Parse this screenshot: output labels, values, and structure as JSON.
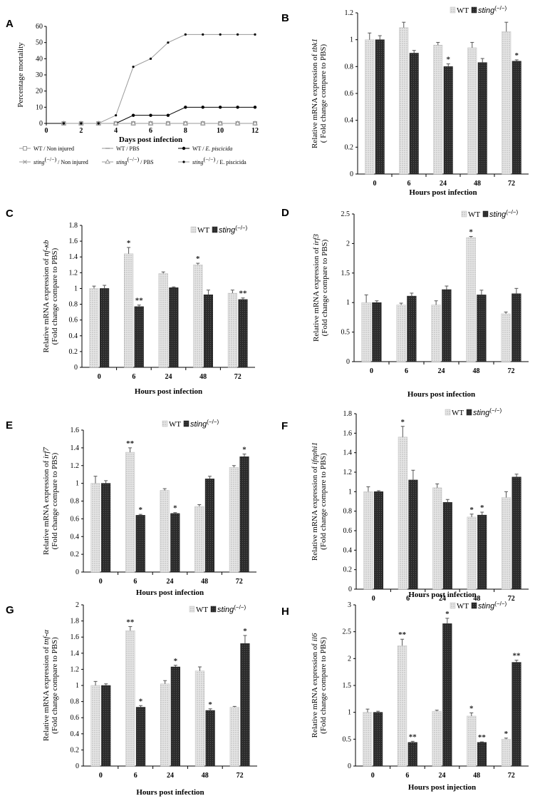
{
  "colors": {
    "wt": "#d9d9d9",
    "sting": "#262626",
    "grid": "#000000",
    "axis": "#000000",
    "mortality_dark": "#000000",
    "mortality_light": "#9a9a9a"
  },
  "charts": [
    {
      "letter": "A",
      "chart_data": {
        "type": "line",
        "ylabel": "Percentage mortality",
        "xlabel": "Days post infection",
        "ylim": [
          0,
          60
        ],
        "yticks": [
          "0",
          "10",
          "20",
          "30",
          "40",
          "50",
          "60"
        ],
        "xlim": [
          0,
          12
        ],
        "xticks": [
          "0",
          "2",
          "4",
          "6",
          "8",
          "10",
          "12"
        ],
        "x": [
          1,
          2,
          3,
          4,
          5,
          6,
          7,
          8,
          9,
          10,
          11,
          12
        ],
        "series": [
          {
            "name": "WT / Non injured",
            "values": [
              0,
              0,
              0,
              0,
              0,
              0,
              0,
              0,
              0,
              0,
              0,
              0
            ],
            "marker": "square-open",
            "color": "#9a9a9a"
          },
          {
            "name": "WT / PBS",
            "values": [
              0,
              0,
              0,
              0,
              0,
              0,
              0,
              0,
              0,
              0,
              0,
              0
            ],
            "marker": "dash",
            "color": "#9a9a9a"
          },
          {
            "name": "WT / E. piscicida",
            "values": [
              0,
              0,
              0,
              0,
              5,
              5,
              5,
              10,
              10,
              10,
              10,
              10
            ],
            "marker": "dot",
            "color": "#000000"
          },
          {
            "name": "sting(−/−) / Non injured",
            "values": [
              0,
              0,
              0,
              0,
              0,
              0,
              0,
              0,
              0,
              0,
              0,
              0
            ],
            "marker": "x",
            "color": "#9a9a9a"
          },
          {
            "name": "sting(−/−) / PBS",
            "values": [
              0,
              0,
              0,
              0,
              0,
              0,
              0,
              0,
              0,
              0,
              0,
              0
            ],
            "marker": "triangle-open",
            "color": "#9a9a9a"
          },
          {
            "name": "sting(−/−) / E. piscicida",
            "values": [
              0,
              0,
              0,
              5,
              35,
              40,
              50,
              55,
              55,
              55,
              55,
              55
            ],
            "marker": "dot-small",
            "color": "#9a9a9a"
          }
        ],
        "legend_labels": [
          {
            "pre": "WT / Non injured",
            "ital": "",
            "post": ""
          },
          {
            "pre": "WT / PBS",
            "ital": "",
            "post": ""
          },
          {
            "pre": "WT / ",
            "ital": "E. piscicida",
            "post": ""
          },
          {
            "pre": "",
            "ital": "sting",
            "post": "(−/−) / Non injured"
          },
          {
            "pre": "",
            "ital": "sting",
            "post": "(−/−) / PBS"
          },
          {
            "pre": "",
            "ital": "sting",
            "post": "(−/−) / E. piscicida"
          }
        ]
      }
    },
    {
      "letter": "B",
      "chart_data": {
        "type": "bar",
        "ylabel_pre": "Relative mRNA expression of ",
        "ylabel_gene": "tbk1",
        "ylabel2": "( Fold change compare to PBS)",
        "xlabel": "Hours post infection",
        "categories": [
          "0",
          "6",
          "24",
          "48",
          "72"
        ],
        "ylim": [
          0,
          1.2
        ],
        "yticks": [
          "0",
          "0.2",
          "0.4",
          "0.6",
          "0.8",
          "1",
          "1.2"
        ],
        "legend": [
          "WT",
          "sting",
          "(−/−)"
        ],
        "series": [
          {
            "name": "WT",
            "values": [
              1.0,
              1.09,
              0.96,
              0.94,
              1.06
            ],
            "err": [
              0.05,
              0.04,
              0.02,
              0.04,
              0.07
            ],
            "marks": [
              "",
              "",
              "",
              "",
              ""
            ]
          },
          {
            "name": "sting(−/−)",
            "values": [
              1.0,
              0.9,
              0.8,
              0.83,
              0.84
            ],
            "err": [
              0.03,
              0.02,
              0.02,
              0.03,
              0.01
            ],
            "marks": [
              "",
              "",
              "*",
              "",
              "*"
            ]
          }
        ]
      }
    },
    {
      "letter": "C",
      "chart_data": {
        "type": "bar",
        "ylabel_pre": "Relative mRNA expression of ",
        "ylabel_gene": "nf-κb",
        "ylabel2": "(Fold change compare to PBS)",
        "xlabel": "Hours post infection",
        "categories": [
          "0",
          "6",
          "24",
          "48",
          "72"
        ],
        "ylim": [
          0,
          1.8
        ],
        "yticks": [
          "0",
          "0.2",
          "0.4",
          "0.6",
          "0.8",
          "1",
          "1.2",
          "1.4",
          "1.6",
          "1.8"
        ],
        "legend": [
          "WT",
          "sting",
          "(−/−)"
        ],
        "series": [
          {
            "name": "WT",
            "values": [
              1.0,
              1.44,
              1.19,
              1.3,
              0.94
            ],
            "err": [
              0.03,
              0.08,
              0.02,
              0.02,
              0.04
            ],
            "marks": [
              "",
              "*",
              "",
              "*",
              ""
            ]
          },
          {
            "name": "sting(−/−)",
            "values": [
              1.0,
              0.77,
              1.01,
              0.92,
              0.86
            ],
            "err": [
              0.04,
              0.02,
              0.01,
              0.06,
              0.02
            ],
            "marks": [
              "",
              "**",
              "",
              "",
              "**"
            ]
          }
        ]
      }
    },
    {
      "letter": "D",
      "chart_data": {
        "type": "bar",
        "ylabel_pre": "Relative mRNA expression of ",
        "ylabel_gene": "irf3",
        "ylabel2": "(Fold change compare to PBS)",
        "xlabel": "Hours post infection",
        "categories": [
          "0",
          "6",
          "24",
          "48",
          "72"
        ],
        "ylim": [
          0,
          2.5
        ],
        "yticks": [
          "0",
          "0.5",
          "1",
          "1.5",
          "2",
          "2.5"
        ],
        "legend": [
          "WT",
          "sting",
          "(−/−)"
        ],
        "series": [
          {
            "name": "WT",
            "values": [
              1.0,
              0.96,
              0.96,
              2.1,
              0.81
            ],
            "err": [
              0.13,
              0.03,
              0.07,
              0.02,
              0.03
            ],
            "marks": [
              "",
              "",
              "",
              "*",
              ""
            ]
          },
          {
            "name": "sting(−/−)",
            "values": [
              1.0,
              1.11,
              1.22,
              1.13,
              1.15
            ],
            "err": [
              0.03,
              0.05,
              0.06,
              0.08,
              0.09
            ],
            "marks": [
              "",
              "",
              "",
              "",
              ""
            ]
          }
        ]
      }
    },
    {
      "letter": "E",
      "chart_data": {
        "type": "bar",
        "ylabel_pre": "Relative mRNA expression of ",
        "ylabel_gene": "irf7",
        "ylabel2": "(Fold change compare to PBS)",
        "xlabel": "Hours post infection",
        "categories": [
          "0",
          "6",
          "24",
          "48",
          "72"
        ],
        "ylim": [
          0,
          1.6
        ],
        "yticks": [
          "0",
          "0.2",
          "0.4",
          "0.6",
          "0.8",
          "1",
          "1.2",
          "1.4",
          "1.6"
        ],
        "legend": [
          "WT",
          "sting",
          "(−/−)"
        ],
        "series": [
          {
            "name": "WT",
            "values": [
              1.0,
              1.35,
              0.92,
              0.74,
              1.18
            ],
            "err": [
              0.08,
              0.05,
              0.02,
              0.02,
              0.02
            ],
            "marks": [
              "",
              "**",
              "",
              "",
              ""
            ]
          },
          {
            "name": "sting(−/−)",
            "values": [
              1.0,
              0.64,
              0.66,
              1.05,
              1.3
            ],
            "err": [
              0.03,
              0.01,
              0.01,
              0.03,
              0.03
            ],
            "marks": [
              "",
              "*",
              "*",
              "",
              "*"
            ]
          }
        ]
      }
    },
    {
      "letter": "F",
      "chart_data": {
        "type": "bar",
        "ylabel_pre": "Relative mRNA expression of ",
        "ylabel_gene": "ifnphi1",
        "ylabel2": "(Fold change compare to PBS)",
        "xlabel": "Hours post infection",
        "categories": [
          "0",
          "6",
          "24",
          "48",
          "72"
        ],
        "ylim": [
          0,
          1.8
        ],
        "yticks": [
          "0",
          "0.2",
          "0.4",
          "0.6",
          "0.8",
          "1",
          "1.2",
          "1.4",
          "1.6",
          "1.8"
        ],
        "legend": [
          "WT",
          "sting",
          "(−/−)"
        ],
        "series": [
          {
            "name": "WT",
            "values": [
              1.0,
              1.56,
              1.04,
              0.74,
              0.94
            ],
            "err": [
              0.05,
              0.11,
              0.04,
              0.03,
              0.06
            ],
            "marks": [
              "",
              "*",
              "",
              "*",
              ""
            ]
          },
          {
            "name": "sting(−/−)",
            "values": [
              1.0,
              1.12,
              0.89,
              0.76,
              1.15
            ],
            "err": [
              0.01,
              0.1,
              0.03,
              0.03,
              0.03
            ],
            "marks": [
              "",
              "",
              "",
              "*",
              ""
            ]
          }
        ]
      }
    },
    {
      "letter": "G",
      "chart_data": {
        "type": "bar",
        "ylabel_pre": "Relative mRNA expression of ",
        "ylabel_gene": "tnf-α",
        "ylabel2": "(Fold change compare to PBS)",
        "xlabel": "Hours post infection",
        "categories": [
          "0",
          "6",
          "24",
          "48",
          "72"
        ],
        "ylim": [
          0,
          2
        ],
        "yticks": [
          "0",
          "0.2",
          "0.4",
          "0.6",
          "0.8",
          "1",
          "1.2",
          "1.4",
          "1.6",
          "1.8",
          "2"
        ],
        "legend": [
          "WT",
          "sting",
          "(−/−)"
        ],
        "series": [
          {
            "name": "WT",
            "values": [
              1.0,
              1.68,
              1.02,
              1.18,
              0.73
            ],
            "err": [
              0.05,
              0.05,
              0.04,
              0.05,
              0.01
            ],
            "marks": [
              "",
              "**",
              "",
              "",
              ""
            ]
          },
          {
            "name": "sting(−/−)",
            "values": [
              1.0,
              0.73,
              1.23,
              0.69,
              1.52
            ],
            "err": [
              0.02,
              0.02,
              0.02,
              0.02,
              0.1
            ],
            "marks": [
              "",
              "*",
              "*",
              "*",
              "*"
            ]
          }
        ]
      }
    },
    {
      "letter": "H",
      "chart_data": {
        "type": "bar",
        "ylabel_pre": "Relative mRNA expression of ",
        "ylabel_gene": "il6",
        "ylabel2": "(Fold change compare to PBS)",
        "xlabel": "Hours post injection",
        "categories": [
          "0",
          "6",
          "24",
          "48",
          "72"
        ],
        "ylim": [
          0,
          3
        ],
        "yticks": [
          "0",
          "0.5",
          "1",
          "1.5",
          "2",
          "2.5",
          "3"
        ],
        "legend": [
          "WT",
          "sting",
          "(−/−)"
        ],
        "series": [
          {
            "name": "WT",
            "values": [
              1.0,
              2.24,
              1.02,
              0.93,
              0.5
            ],
            "err": [
              0.06,
              0.12,
              0.02,
              0.06,
              0.02
            ],
            "marks": [
              "",
              "**",
              "",
              "*",
              "*"
            ]
          },
          {
            "name": "sting(−/−)",
            "values": [
              1.0,
              0.44,
              2.65,
              0.44,
              1.93
            ],
            "err": [
              0.02,
              0.02,
              0.1,
              0.01,
              0.04
            ],
            "marks": [
              "",
              "**",
              "*",
              "**",
              "**"
            ]
          }
        ]
      }
    }
  ]
}
